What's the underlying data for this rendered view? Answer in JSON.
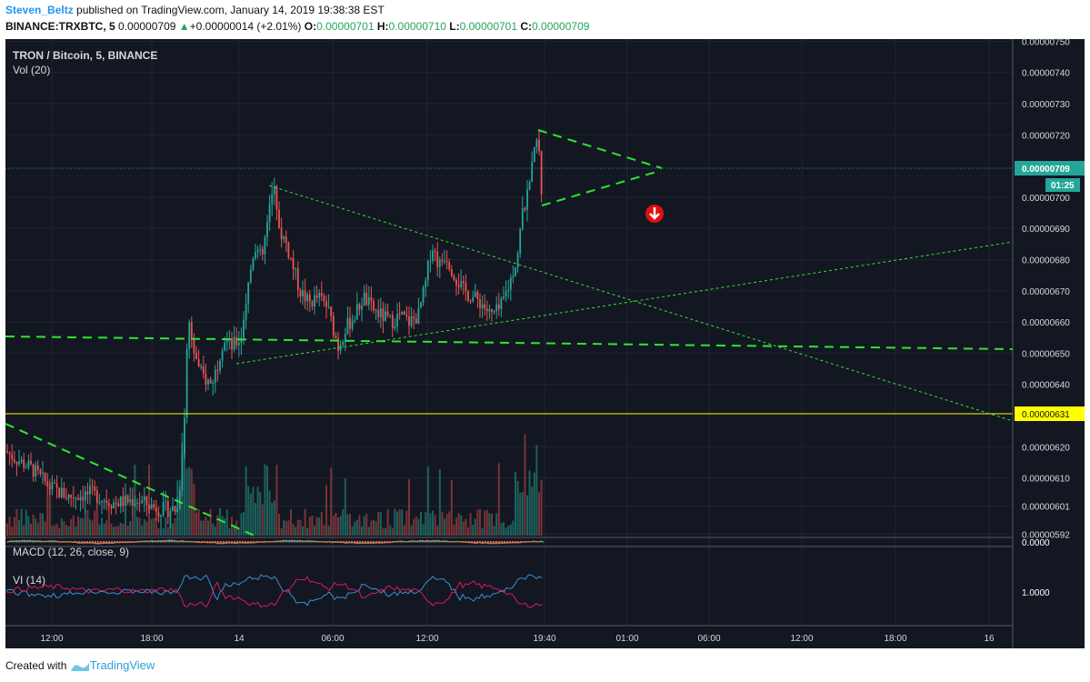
{
  "header": {
    "user": "Steven_Beltz",
    "published": " published on TradingView.com, January 14, 2019 19:38:38 EST",
    "symbol": "BINANCE:TRXBTC, 5",
    "last": "0.00000709",
    "up_arrow": "▲",
    "change": "+0.00000014 (+2.01%)",
    "o_label": "O:",
    "o": "0.00000701",
    "h_label": "H:",
    "h": "0.00000710",
    "l_label": "L:",
    "l": "0.00000701",
    "c_label": "C:",
    "c": "0.00000709"
  },
  "footer": {
    "created_with": "Created with",
    "brand": "TradingView"
  },
  "colors": {
    "background": "#131722",
    "up": "#26a69a",
    "down": "#ef5350",
    "trend": "#2ee62e",
    "support": "#ffff00",
    "last_price": "#26a69a",
    "marker": "#e01010"
  },
  "chart_data": {
    "type": "candlestick",
    "title": "TRON / Bitcoin, 5, BINANCE",
    "indicators": [
      "Vol (20)",
      "MACD (12, 26, close, 9)",
      "VI (14)"
    ],
    "price_axis": {
      "ticks": [
        "0.00000750",
        "0.00000740",
        "0.00000730",
        "0.00000720",
        "0.00000700",
        "0.00000690",
        "0.00000680",
        "0.00000670",
        "0.00000660",
        "0.00000650",
        "0.00000640",
        "0.00000620",
        "0.00000610",
        "0.00000601",
        "0.00000592"
      ],
      "ylim": [
        5.92e-06,
        7.5e-06
      ]
    },
    "last_price_label": "0.00000709",
    "last_price": 7.09e-06,
    "countdown_label": "01:25",
    "support_label": "0.00000631",
    "support_price": 6.31e-06,
    "macd_axis_label": "0.0000",
    "vi_axis_label": "1.0000",
    "time_axis": [
      "12:00",
      "18:00",
      "14",
      "06:00",
      "12:00",
      "19:40",
      "01:00",
      "06:00",
      "12:00",
      "18:00",
      "16"
    ],
    "price_path": [
      [
        0,
        6.2e-06
      ],
      [
        18,
        6.16e-06
      ],
      [
        35,
        6.13e-06
      ],
      [
        55,
        6.07e-06
      ],
      [
        75,
        6.04e-06
      ],
      [
        100,
        6.05e-06
      ],
      [
        125,
        6.02e-06
      ],
      [
        150,
        6.03e-06
      ],
      [
        175,
        6e-06
      ],
      [
        196,
        6e-06
      ],
      [
        203,
        6.3e-06
      ],
      [
        207,
        6.62e-06
      ],
      [
        212,
        6.55e-06
      ],
      [
        218,
        6.45e-06
      ],
      [
        225,
        6.42e-06
      ],
      [
        232,
        6.4e-06
      ],
      [
        238,
        6.45e-06
      ],
      [
        246,
        6.55e-06
      ],
      [
        255,
        6.52e-06
      ],
      [
        265,
        6.55e-06
      ],
      [
        272,
        6.7e-06
      ],
      [
        280,
        6.85e-06
      ],
      [
        288,
        6.8e-06
      ],
      [
        296,
        6.95e-06
      ],
      [
        302,
        7.05e-06
      ],
      [
        307,
        6.9e-06
      ],
      [
        315,
        6.85e-06
      ],
      [
        322,
        6.78e-06
      ],
      [
        330,
        6.7e-06
      ],
      [
        340,
        6.66e-06
      ],
      [
        350,
        6.68e-06
      ],
      [
        360,
        6.65e-06
      ],
      [
        372,
        6.52e-06
      ],
      [
        380,
        6.58e-06
      ],
      [
        390,
        6.62e-06
      ],
      [
        400,
        6.68e-06
      ],
      [
        410,
        6.64e-06
      ],
      [
        420,
        6.62e-06
      ],
      [
        430,
        6.6e-06
      ],
      [
        440,
        6.62e-06
      ],
      [
        450,
        6.6e-06
      ],
      [
        460,
        6.62e-06
      ],
      [
        468,
        6.72e-06
      ],
      [
        475,
        6.85e-06
      ],
      [
        483,
        6.78e-06
      ],
      [
        490,
        6.82e-06
      ],
      [
        500,
        6.75e-06
      ],
      [
        510,
        6.7e-06
      ],
      [
        520,
        6.68e-06
      ],
      [
        530,
        6.66e-06
      ],
      [
        540,
        6.62e-06
      ],
      [
        550,
        6.64e-06
      ],
      [
        560,
        6.72e-06
      ],
      [
        568,
        6.8e-06
      ],
      [
        575,
        6.95e-06
      ],
      [
        582,
        7.02e-06
      ],
      [
        588,
        7.15e-06
      ],
      [
        592,
        7.2e-06
      ],
      [
        596,
        7e-06
      ],
      [
        599,
        7.09e-06
      ]
    ]
  }
}
